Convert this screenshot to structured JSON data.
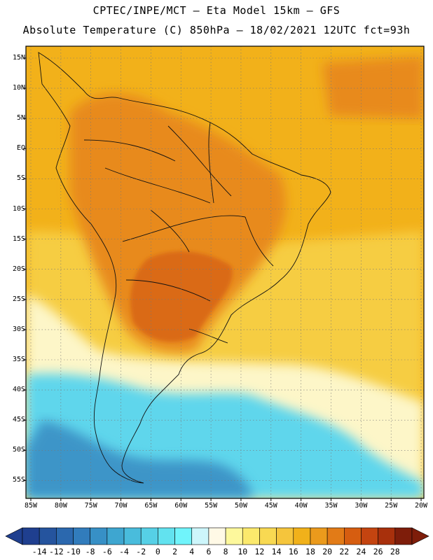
{
  "header": {
    "line1": "CPTEC/INPE/MCT –  Eta Model 15km – GFS",
    "line2": "Absolute Temperature (C) 850hPa – 18/02/2021 12UTC fct=93h"
  },
  "axes": {
    "lat_labels": [
      "15N",
      "10N",
      "5N",
      "EQ",
      "5S",
      "10S",
      "15S",
      "20S",
      "25S",
      "30S",
      "35S",
      "40S",
      "45S",
      "50S",
      "55S"
    ],
    "lon_labels": [
      "85W",
      "80W",
      "75W",
      "70W",
      "65W",
      "60W",
      "55W",
      "50W",
      "45W",
      "40W",
      "35W",
      "30W",
      "25W",
      "20W"
    ]
  },
  "colorbar": {
    "labels": [
      "-14",
      "-12",
      "-10",
      "-8",
      "-6",
      "-4",
      "-2",
      "0",
      "2",
      "4",
      "6",
      "8",
      "10",
      "12",
      "14",
      "16",
      "18",
      "20",
      "22",
      "24",
      "26",
      "28"
    ],
    "colors": [
      "#1f3f8f",
      "#25549e",
      "#2b68ae",
      "#317cbc",
      "#3790c6",
      "#3ea6d0",
      "#49bcdc",
      "#56d0e6",
      "#62e2ef",
      "#70f4fb",
      "#cdf6fb",
      "#fff9e6",
      "#fdf89c",
      "#fbe96c",
      "#f8d952",
      "#f5c53c",
      "#f1b11a",
      "#eb9a1c",
      "#e27b17",
      "#d65d10",
      "#c44410",
      "#a8300c",
      "#7e1d0a"
    ],
    "arrow_left": "#1f3f8f",
    "arrow_right": "#7e1d0a"
  },
  "colors": {
    "ocean_tropical": "#f2b11a",
    "ocean_subtropical": "#f7cf45",
    "ocean_cool": "#fdf6c8",
    "land_hot": "#e88a1e",
    "land_hottest": "#da6a14",
    "south_cold": "#5fd6ec",
    "south_colder": "#3d95c8"
  }
}
